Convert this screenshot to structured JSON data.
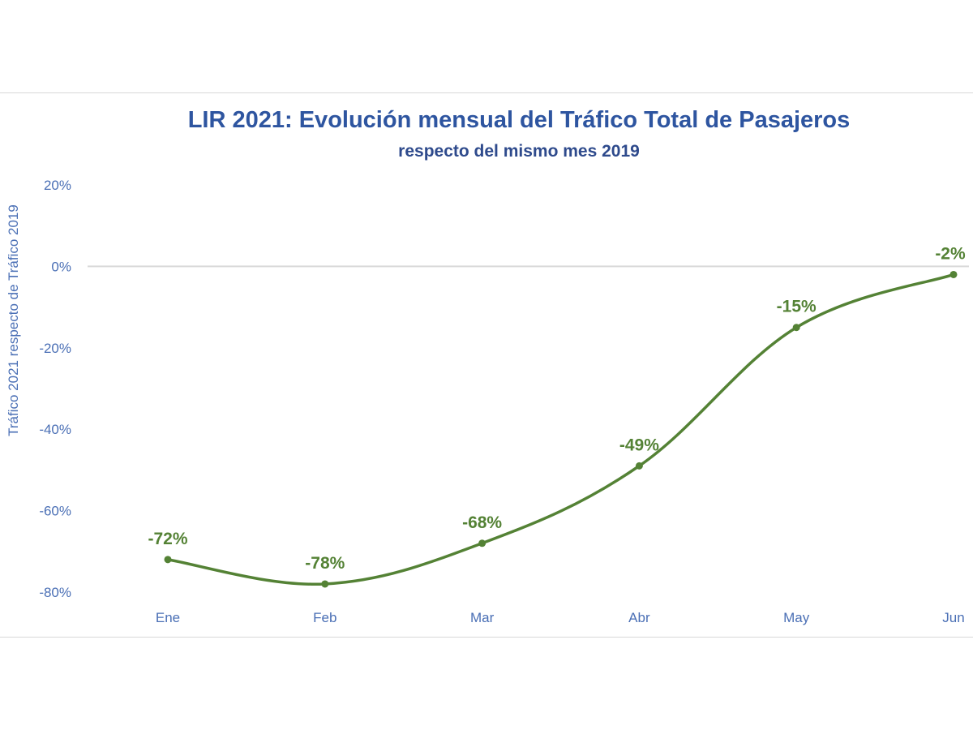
{
  "chart_data": {
    "type": "line",
    "title": "LIR 2021: Evolución mensual del Tráfico Total de Pasajeros",
    "subtitle": "respecto del mismo mes 2019",
    "ylabel": "Tráfico 2021 respecto de Tráfico 2019",
    "xlabel": "",
    "categories": [
      "Ene",
      "Feb",
      "Mar",
      "Abr",
      "May",
      "Jun"
    ],
    "values": [
      -72,
      -78,
      -68,
      -49,
      -15,
      -2
    ],
    "data_labels": [
      "-72%",
      "-78%",
      "-68%",
      "-49%",
      "-15%",
      "-2%"
    ],
    "ylim": [
      -80,
      20
    ],
    "yticks": [
      20,
      0,
      -20,
      -40,
      -60,
      -80
    ],
    "ytick_labels": [
      "20%",
      "0%",
      "-20%",
      "-40%",
      "-60%",
      "-80%"
    ],
    "grid": "zero line only",
    "smooth": true,
    "line_color": "#548235",
    "text_color": "#4a6fb5",
    "title_color": "#2e55a0"
  }
}
